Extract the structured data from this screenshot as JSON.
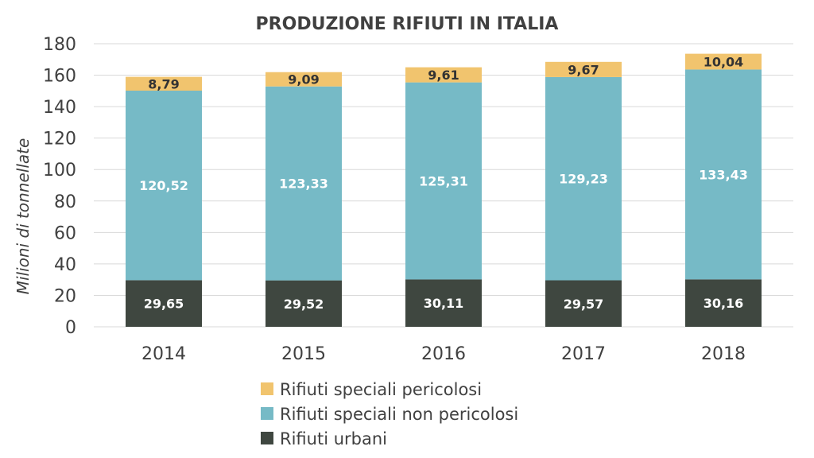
{
  "chart_data": {
    "type": "bar",
    "stacked": true,
    "title": "PRODUZIONE RIFIUTI IN ITALIA",
    "ylabel": "Milioni di tonnellate",
    "xlabel": "",
    "ylim": [
      0,
      180
    ],
    "yticks": [
      0,
      20,
      40,
      60,
      80,
      100,
      120,
      140,
      160,
      180
    ],
    "grid": true,
    "legend_position": "bottom",
    "categories": [
      "2014",
      "2015",
      "2016",
      "2017",
      "2018"
    ],
    "series": [
      {
        "name": "Rifiuti urbani",
        "color": "#3f4740",
        "label_color": "#ffffff",
        "values": [
          29.65,
          29.52,
          30.11,
          29.57,
          30.16
        ],
        "labels": [
          "29,65",
          "29,52",
          "30,11",
          "29,57",
          "30,16"
        ]
      },
      {
        "name": "Rifiuti speciali non pericolosi",
        "color": "#76bac6",
        "label_color": "#ffffff",
        "values": [
          120.52,
          123.33,
          125.31,
          129.23,
          133.43
        ],
        "labels": [
          "120,52",
          "123,33",
          "125,31",
          "129,23",
          "133,43"
        ]
      },
      {
        "name": "Rifiuti speciali pericolosi",
        "color": "#f1c46e",
        "label_color": "#333333",
        "values": [
          8.79,
          9.09,
          9.61,
          9.67,
          10.04
        ],
        "labels": [
          "8,79",
          "9,09",
          "9,61",
          "9,67",
          "10,04"
        ]
      }
    ],
    "legend_order": [
      "Rifiuti speciali pericolosi",
      "Rifiuti speciali non pericolosi",
      "Rifiuti urbani"
    ]
  }
}
